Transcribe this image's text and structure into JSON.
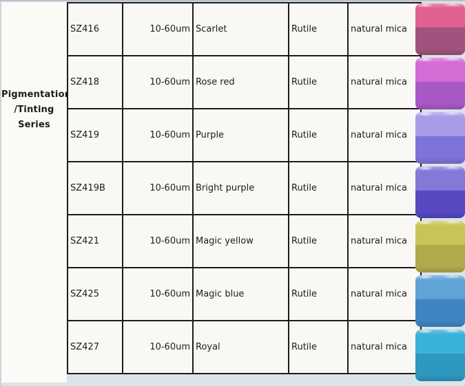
{
  "page": {
    "background": "#dce3e8",
    "cell_background": "#f9f8f5",
    "border_color": "#1b1b1b",
    "text_color": "#1c1c1c"
  },
  "series_label": {
    "line1": "Pigmentation",
    "line2": "/Tinting",
    "line3": "Series"
  },
  "table": {
    "rows": [
      {
        "code": "SZ416",
        "size": "10-60um",
        "color_name": "Scarlet",
        "crystal_form": "Rutile",
        "substrate": "natural mica",
        "swatch_top": "#e0618f",
        "swatch_bottom": "#a2537d"
      },
      {
        "code": "SZ418",
        "size": "10-60um",
        "color_name": "Rose red",
        "crystal_form": "Rutile",
        "substrate": "natural mica",
        "swatch_top": "#d46cd6",
        "swatch_bottom": "#a958c7"
      },
      {
        "code": "SZ419",
        "size": "10-60um",
        "color_name": "Purple",
        "crystal_form": "Rutile",
        "substrate": "natural mica",
        "swatch_top": "#a89ce8",
        "swatch_bottom": "#7e73d8"
      },
      {
        "code": "SZ419B",
        "size": "10-60um",
        "color_name": "Bright purple",
        "crystal_form": "Rutile",
        "substrate": "natural mica",
        "swatch_top": "#8379d9",
        "swatch_bottom": "#5649c2"
      },
      {
        "code": "SZ421",
        "size": "10-60um",
        "color_name": "Magic yellow",
        "crystal_form": "Rutile",
        "substrate": "natural mica",
        "swatch_top": "#c9c457",
        "swatch_bottom": "#b0aa4d"
      },
      {
        "code": "SZ425",
        "size": "10-60um",
        "color_name": "Magic blue",
        "crystal_form": "Rutile",
        "substrate": "natural mica",
        "swatch_top": "#60a3d7",
        "swatch_bottom": "#3e86c2"
      },
      {
        "code": "SZ427",
        "size": "10-60um",
        "color_name": "Royal",
        "crystal_form": "Rutile",
        "substrate": "natural mica",
        "swatch_top": "#3ab1d9",
        "swatch_bottom": "#2d98c0"
      }
    ]
  }
}
